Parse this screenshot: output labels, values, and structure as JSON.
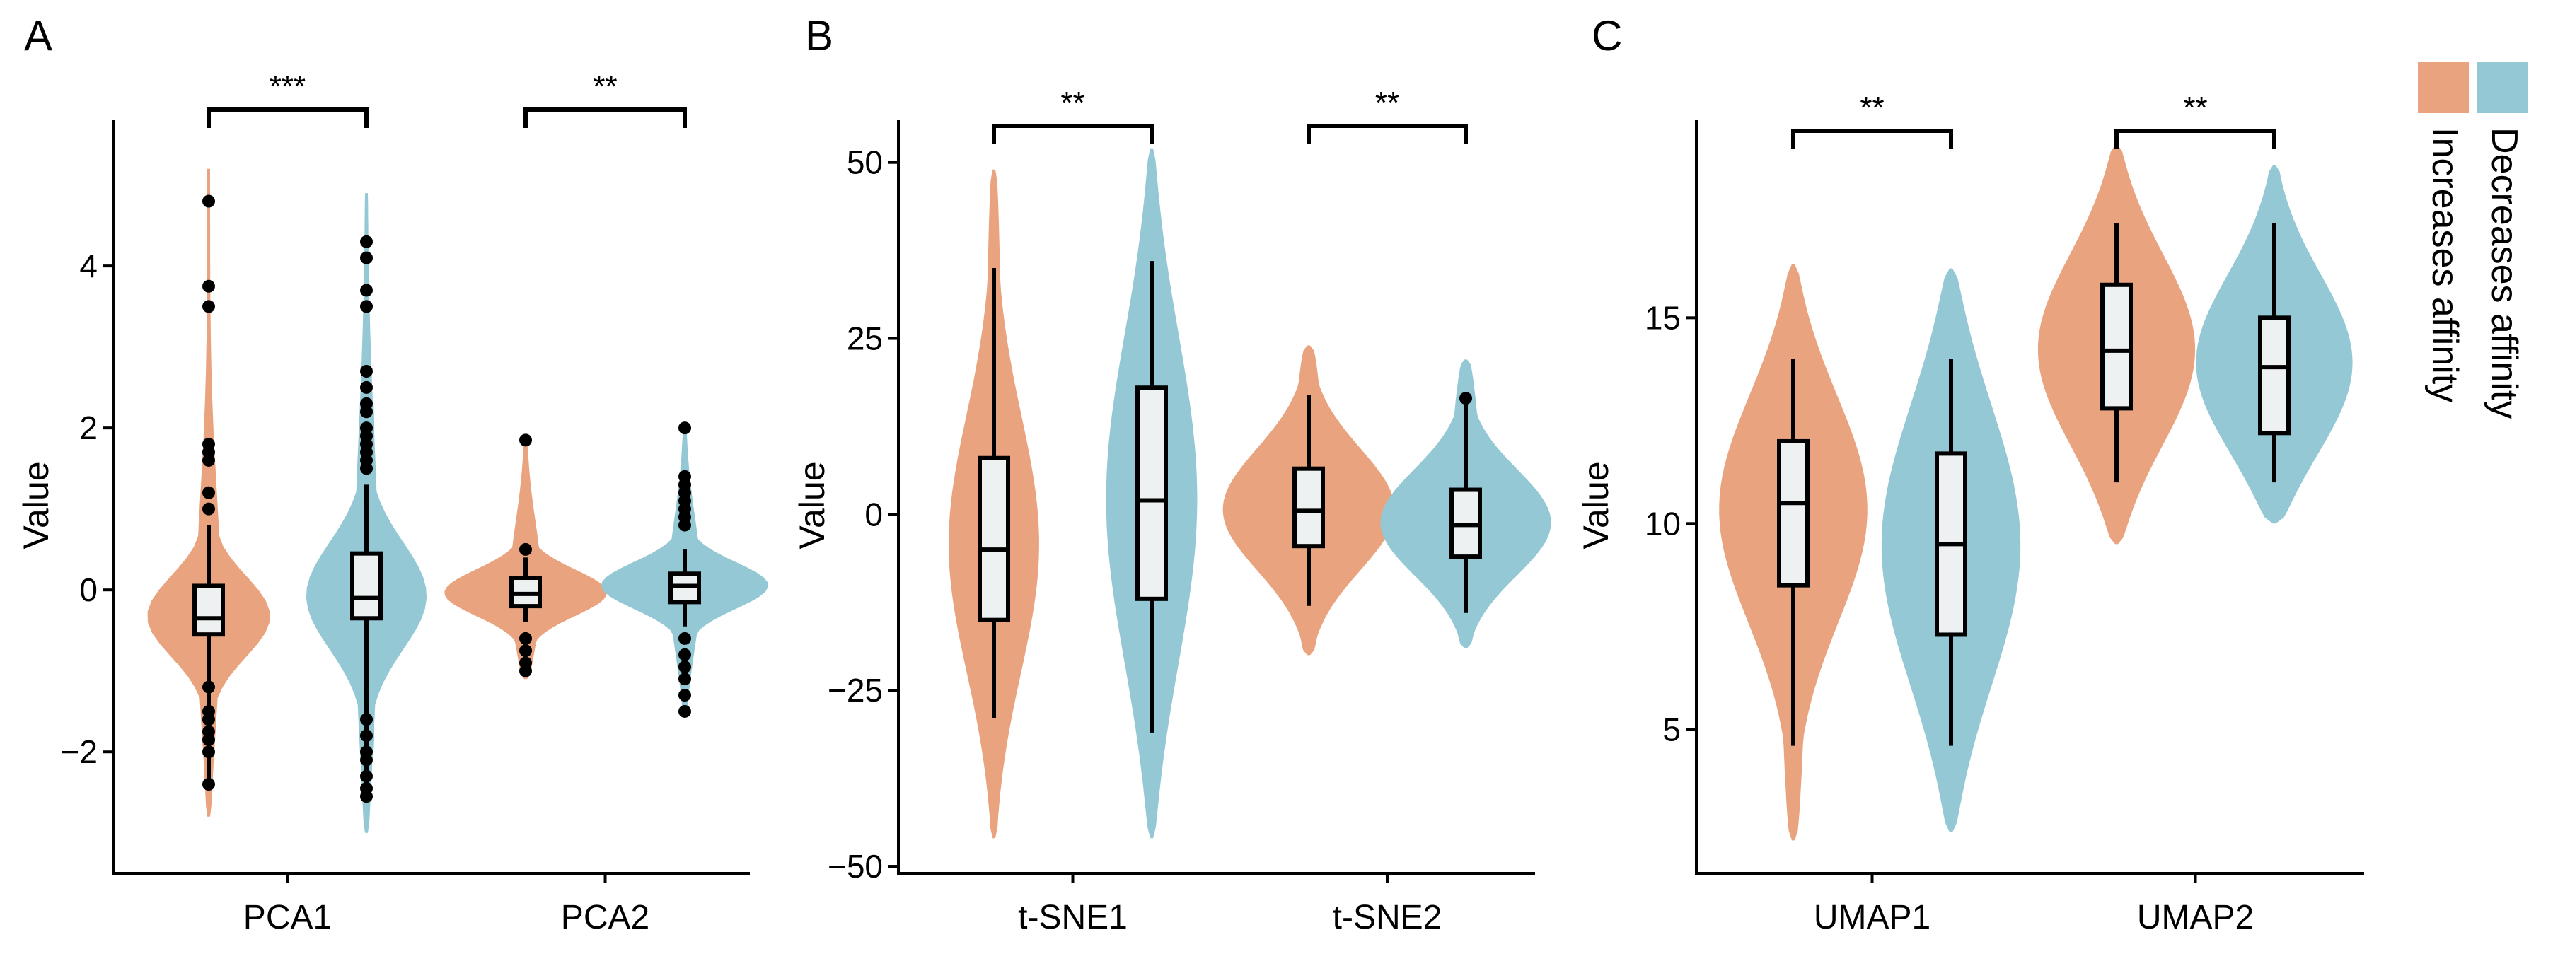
{
  "colors": {
    "increases": "#E9A37F",
    "decreases": "#94C8D4",
    "box_fill": "#EDF1F2",
    "line": "#000000"
  },
  "legend": {
    "items": [
      {
        "key": "increases",
        "label": "Increases affinity"
      },
      {
        "key": "decreases",
        "label": "Decreases affinity"
      }
    ]
  },
  "chart_data": [
    {
      "panel": "A",
      "type": "violin",
      "ylabel": "Value",
      "xlabel": "",
      "ylim": [
        -3.5,
        5.8
      ],
      "yticks": [
        -2,
        0,
        2,
        4
      ],
      "ytick_labels": [
        "−2",
        "0",
        "2",
        "4"
      ],
      "categories": [
        "PCA1",
        "PCA2"
      ],
      "significance": [
        "***",
        "**"
      ],
      "groups": [
        {
          "category": "PCA1",
          "series": "increases",
          "min": -2.45,
          "q1": -0.55,
          "median": -0.35,
          "q3": 0.05,
          "max": 0.8,
          "vmin": -2.8,
          "vmax": 5.2,
          "vwidth": 0.35,
          "outliers": [
            4.8,
            3.75,
            3.5,
            1.8,
            1.7,
            1.6,
            1.2,
            1.0,
            -1.2,
            -1.5,
            -1.6,
            -1.75,
            -1.85,
            -2.0,
            -2.4
          ]
        },
        {
          "category": "PCA1",
          "series": "decreases",
          "min": -2.55,
          "q1": -0.35,
          "median": -0.1,
          "q3": 0.45,
          "max": 1.3,
          "vmin": -3.0,
          "vmax": 4.9,
          "vwidth": 0.33,
          "outliers": [
            4.3,
            4.1,
            3.7,
            3.5,
            2.7,
            2.5,
            2.3,
            2.2,
            2.0,
            1.9,
            1.8,
            1.7,
            1.6,
            1.5,
            -1.6,
            -1.8,
            -2.0,
            -2.1,
            -2.3,
            -2.45,
            -2.55
          ]
        },
        {
          "category": "PCA2",
          "series": "increases",
          "min": -0.4,
          "q1": -0.2,
          "median": -0.05,
          "q3": 0.15,
          "max": 0.4,
          "vmin": -1.1,
          "vmax": 1.85,
          "vwidth": 0.45,
          "outliers": [
            1.85,
            0.5,
            -0.6,
            -0.75,
            -0.9,
            -1.0
          ]
        },
        {
          "category": "PCA2",
          "series": "decreases",
          "min": -0.45,
          "q1": -0.15,
          "median": 0.05,
          "q3": 0.2,
          "max": 0.5,
          "vmin": -1.5,
          "vmax": 2.05,
          "vwidth": 0.45,
          "outliers": [
            2.0,
            1.4,
            1.3,
            1.2,
            1.1,
            1.0,
            0.9,
            0.8,
            -0.6,
            -0.8,
            -0.95,
            -1.1,
            -1.3,
            -1.5
          ]
        }
      ]
    },
    {
      "panel": "B",
      "type": "violin",
      "ylabel": "Value",
      "xlabel": "",
      "ylim": [
        -51,
        56
      ],
      "yticks": [
        -50,
        -25,
        0,
        25,
        50
      ],
      "ytick_labels": [
        "−50",
        "−25",
        "0",
        "25",
        "50"
      ],
      "categories": [
        "t-SNE1",
        "t-SNE2"
      ],
      "significance": [
        "**",
        "**"
      ],
      "groups": [
        {
          "category": "t-SNE1",
          "series": "increases",
          "min": -29,
          "q1": -15,
          "median": -5,
          "q3": 8,
          "max": 35,
          "vmin": -46,
          "vmax": 49,
          "vwidth": 0.24,
          "outliers": []
        },
        {
          "category": "t-SNE1",
          "series": "decreases",
          "min": -31,
          "q1": -12,
          "median": 2,
          "q3": 18,
          "max": 36,
          "vmin": -46,
          "vmax": 52,
          "vwidth": 0.24,
          "outliers": []
        },
        {
          "category": "t-SNE2",
          "series": "increases",
          "min": -13,
          "q1": -4.5,
          "median": 0.5,
          "q3": 6.5,
          "max": 17,
          "vmin": -20,
          "vmax": 24,
          "vwidth": 0.46,
          "outliers": []
        },
        {
          "category": "t-SNE2",
          "series": "decreases",
          "min": -14,
          "q1": -6,
          "median": -1.5,
          "q3": 3.5,
          "max": 16,
          "vmin": -19,
          "vmax": 22,
          "vwidth": 0.46,
          "outliers": [
            16.5
          ]
        }
      ]
    },
    {
      "panel": "C",
      "type": "violin",
      "ylabel": "Value",
      "xlabel": "",
      "ylim": [
        1.5,
        19.8
      ],
      "yticks": [
        5,
        10,
        15
      ],
      "ytick_labels": [
        "5",
        "10",
        "15"
      ],
      "categories": [
        "UMAP1",
        "UMAP2"
      ],
      "significance": [
        "**",
        "**"
      ],
      "groups": [
        {
          "category": "UMAP1",
          "series": "increases",
          "min": 4.6,
          "q1": 8.5,
          "median": 10.5,
          "q3": 12,
          "max": 14,
          "vmin": 2.3,
          "vmax": 16.3,
          "vwidth": 0.4,
          "outliers": []
        },
        {
          "category": "UMAP1",
          "series": "decreases",
          "min": 4.6,
          "q1": 7.3,
          "median": 9.5,
          "q3": 11.7,
          "max": 14,
          "vmin": 2.5,
          "vmax": 16.2,
          "vwidth": 0.37,
          "outliers": []
        },
        {
          "category": "UMAP2",
          "series": "increases",
          "min": 11,
          "q1": 12.8,
          "median": 14.2,
          "q3": 15.8,
          "max": 17.3,
          "vmin": 9.5,
          "vmax": 19.2,
          "vwidth": 0.42,
          "outliers": []
        },
        {
          "category": "UMAP2",
          "series": "decreases",
          "min": 11,
          "q1": 12.2,
          "median": 13.8,
          "q3": 15,
          "max": 17.3,
          "vmin": 10,
          "vmax": 18.7,
          "vwidth": 0.42,
          "outliers": []
        }
      ]
    }
  ]
}
